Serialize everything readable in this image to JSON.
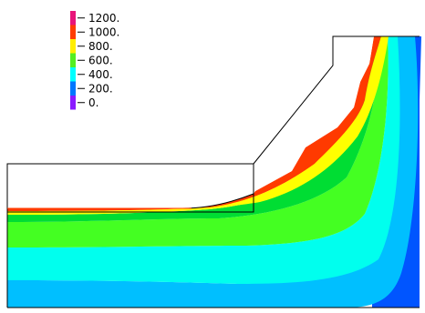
{
  "chart_data": {
    "type": "heatmap",
    "title": "",
    "xlabel": "",
    "ylabel": "",
    "legend_position": "top-left",
    "levels": [
      {
        "label": "1200.",
        "color": "#e8157a"
      },
      {
        "label": "1000.",
        "color": "#ff3c00"
      },
      {
        "label": "800.",
        "color": "#ffee00"
      },
      {
        "label": "600.",
        "color": "#55ee22"
      },
      {
        "label": "400.",
        "color": "#00ffff"
      },
      {
        "label": "200.",
        "color": "#0077ff"
      },
      {
        "label": "0.",
        "color": "#8a1aff"
      }
    ],
    "field_colors": {
      "deep": "#0055ff",
      "layer_200_400": "#00bfff",
      "layer_400_600": "#00ffee",
      "layer_600_700": "#44ff22",
      "layer_700_800": "#00dd33",
      "layer_800_900": "#ffff00",
      "layer_1000": "#ff3a00"
    }
  }
}
